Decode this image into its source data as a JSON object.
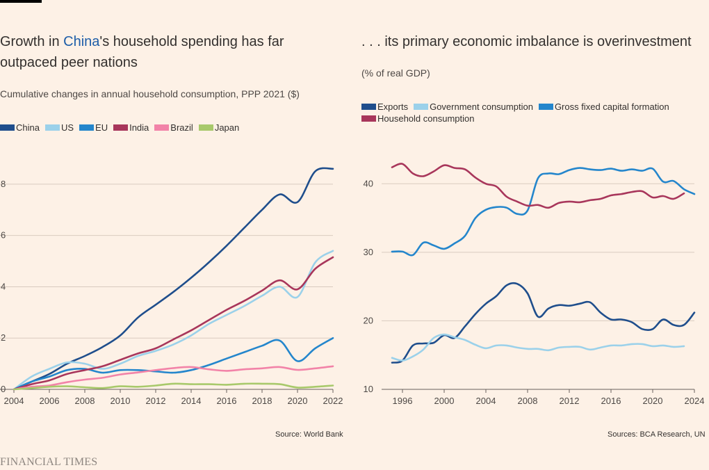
{
  "left": {
    "title_pre": "Growth in ",
    "title_highlight": "China",
    "title_post": "'s household spending has far outpaced peer nations",
    "subtitle": "Cumulative changes in annual household consumption, PPP 2021 ($)",
    "source": "Source: World Bank"
  },
  "right": {
    "title": ". . . its primary economic imbalance is overinvestment",
    "subtitle": "(% of real GDP)",
    "source": "Sources: BCA Research, UN"
  },
  "footer": {
    "brand": "FINANCIAL TIMES"
  },
  "colors": {
    "background": "#fdf1e6",
    "highlight": "#1d5da8"
  },
  "chart_data": [
    {
      "type": "line",
      "title": "Growth in China's household spending has far outpaced peer nations",
      "subtitle": "Cumulative changes in annual household consumption, PPP 2021 ($)",
      "xlim": [
        2004,
        2022
      ],
      "ylim": [
        0,
        9
      ],
      "x_ticks": [
        2004,
        2006,
        2008,
        2010,
        2012,
        2014,
        2016,
        2018,
        2020,
        2022
      ],
      "y_ticks": [
        0,
        2,
        4,
        6,
        8
      ],
      "y_tick_labels": [
        "0",
        "2",
        "4",
        "6",
        "8"
      ],
      "legend_position": "top-left",
      "x": [
        2004,
        2005,
        2006,
        2007,
        2008,
        2009,
        2010,
        2011,
        2012,
        2013,
        2014,
        2015,
        2016,
        2017,
        2018,
        2019,
        2020,
        2021,
        2022
      ],
      "series": [
        {
          "name": "China",
          "color": "#1f4e8c",
          "values": [
            0,
            0.3,
            0.6,
            1.0,
            1.3,
            1.65,
            2.1,
            2.8,
            3.3,
            3.8,
            4.35,
            4.95,
            5.6,
            6.3,
            7.0,
            7.6,
            7.3,
            8.5,
            8.6
          ]
        },
        {
          "name": "US",
          "color": "#9bd1ea",
          "values": [
            0,
            0.5,
            0.8,
            1.05,
            1.0,
            0.8,
            1.0,
            1.3,
            1.5,
            1.75,
            2.1,
            2.55,
            2.9,
            3.25,
            3.65,
            4.0,
            3.6,
            4.95,
            5.4
          ]
        },
        {
          "name": "EU",
          "color": "#2486cc",
          "values": [
            0,
            0.3,
            0.5,
            0.75,
            0.8,
            0.65,
            0.75,
            0.75,
            0.7,
            0.65,
            0.75,
            0.95,
            1.2,
            1.45,
            1.7,
            1.9,
            1.1,
            1.6,
            2.0
          ]
        },
        {
          "name": "India",
          "color": "#a8365b",
          "values": [
            0,
            0.2,
            0.35,
            0.6,
            0.75,
            0.9,
            1.15,
            1.4,
            1.6,
            1.95,
            2.3,
            2.7,
            3.1,
            3.45,
            3.85,
            4.25,
            3.9,
            4.7,
            5.15
          ]
        },
        {
          "name": "Brazil",
          "color": "#f283a8",
          "values": [
            0,
            0.1,
            0.15,
            0.28,
            0.38,
            0.45,
            0.58,
            0.66,
            0.75,
            0.83,
            0.87,
            0.78,
            0.72,
            0.78,
            0.82,
            0.87,
            0.76,
            0.82,
            0.9
          ]
        },
        {
          "name": "Japan",
          "color": "#a8c96b",
          "values": [
            0,
            0.05,
            0.1,
            0.12,
            0.08,
            0.05,
            0.12,
            0.1,
            0.15,
            0.22,
            0.2,
            0.2,
            0.18,
            0.22,
            0.22,
            0.2,
            0.07,
            0.1,
            0.15
          ]
        }
      ]
    },
    {
      "type": "line",
      "title": ". . . its primary economic imbalance is overinvestment",
      "subtitle": "(% of real GDP)",
      "xlim": [
        1994,
        2024
      ],
      "ylim": [
        10,
        45
      ],
      "x_ticks": [
        1996,
        2000,
        2004,
        2008,
        2012,
        2016,
        2020,
        2024
      ],
      "y_ticks": [
        10,
        20,
        30,
        40
      ],
      "legend_position": "top-left",
      "x": [
        1995,
        1996,
        1997,
        1998,
        1999,
        2000,
        2001,
        2002,
        2003,
        2004,
        2005,
        2006,
        2007,
        2008,
        2009,
        2010,
        2011,
        2012,
        2013,
        2014,
        2015,
        2016,
        2017,
        2018,
        2019,
        2020,
        2021,
        2022,
        2023,
        2024
      ],
      "series": [
        {
          "name": "Exports",
          "color": "#1f4e8c",
          "values": [
            13.9,
            14.2,
            16.4,
            16.7,
            16.8,
            17.9,
            17.5,
            19.2,
            21.0,
            22.5,
            23.6,
            25.2,
            25.4,
            24.0,
            20.6,
            21.8,
            22.3,
            22.2,
            22.5,
            22.7,
            21.2,
            20.2,
            20.2,
            19.8,
            18.8,
            18.8,
            20.2,
            19.4,
            19.4,
            21.2
          ]
        },
        {
          "name": "Government consumption",
          "color": "#9bd1ea",
          "values": [
            14.6,
            14.2,
            14.8,
            15.8,
            17.5,
            18.0,
            17.6,
            17.2,
            16.5,
            16.0,
            16.4,
            16.4,
            16.1,
            15.9,
            15.9,
            15.7,
            16.1,
            16.2,
            16.2,
            15.8,
            16.1,
            16.4,
            16.4,
            16.6,
            16.6,
            16.3,
            16.4,
            16.2,
            16.3,
            null
          ]
        },
        {
          "name": "Gross fixed capital formation",
          "color": "#2486cc",
          "values": [
            30.1,
            30.1,
            29.6,
            31.4,
            31.0,
            30.5,
            31.3,
            32.4,
            35.0,
            36.2,
            36.6,
            36.5,
            35.6,
            36.1,
            40.8,
            41.5,
            41.4,
            42.0,
            42.3,
            42.1,
            42.0,
            42.2,
            41.9,
            42.1,
            41.9,
            42.2,
            40.3,
            40.4,
            39.2,
            38.5
          ]
        },
        {
          "name": "Household consumption",
          "color": "#a8365b",
          "values": [
            42.4,
            42.9,
            41.5,
            41.1,
            41.8,
            42.7,
            42.3,
            42.1,
            40.9,
            40.0,
            39.6,
            38.1,
            37.4,
            36.8,
            36.9,
            36.5,
            37.2,
            37.4,
            37.3,
            37.6,
            37.8,
            38.3,
            38.5,
            38.8,
            38.9,
            38.0,
            38.2,
            37.8,
            38.6,
            null
          ]
        }
      ]
    }
  ]
}
